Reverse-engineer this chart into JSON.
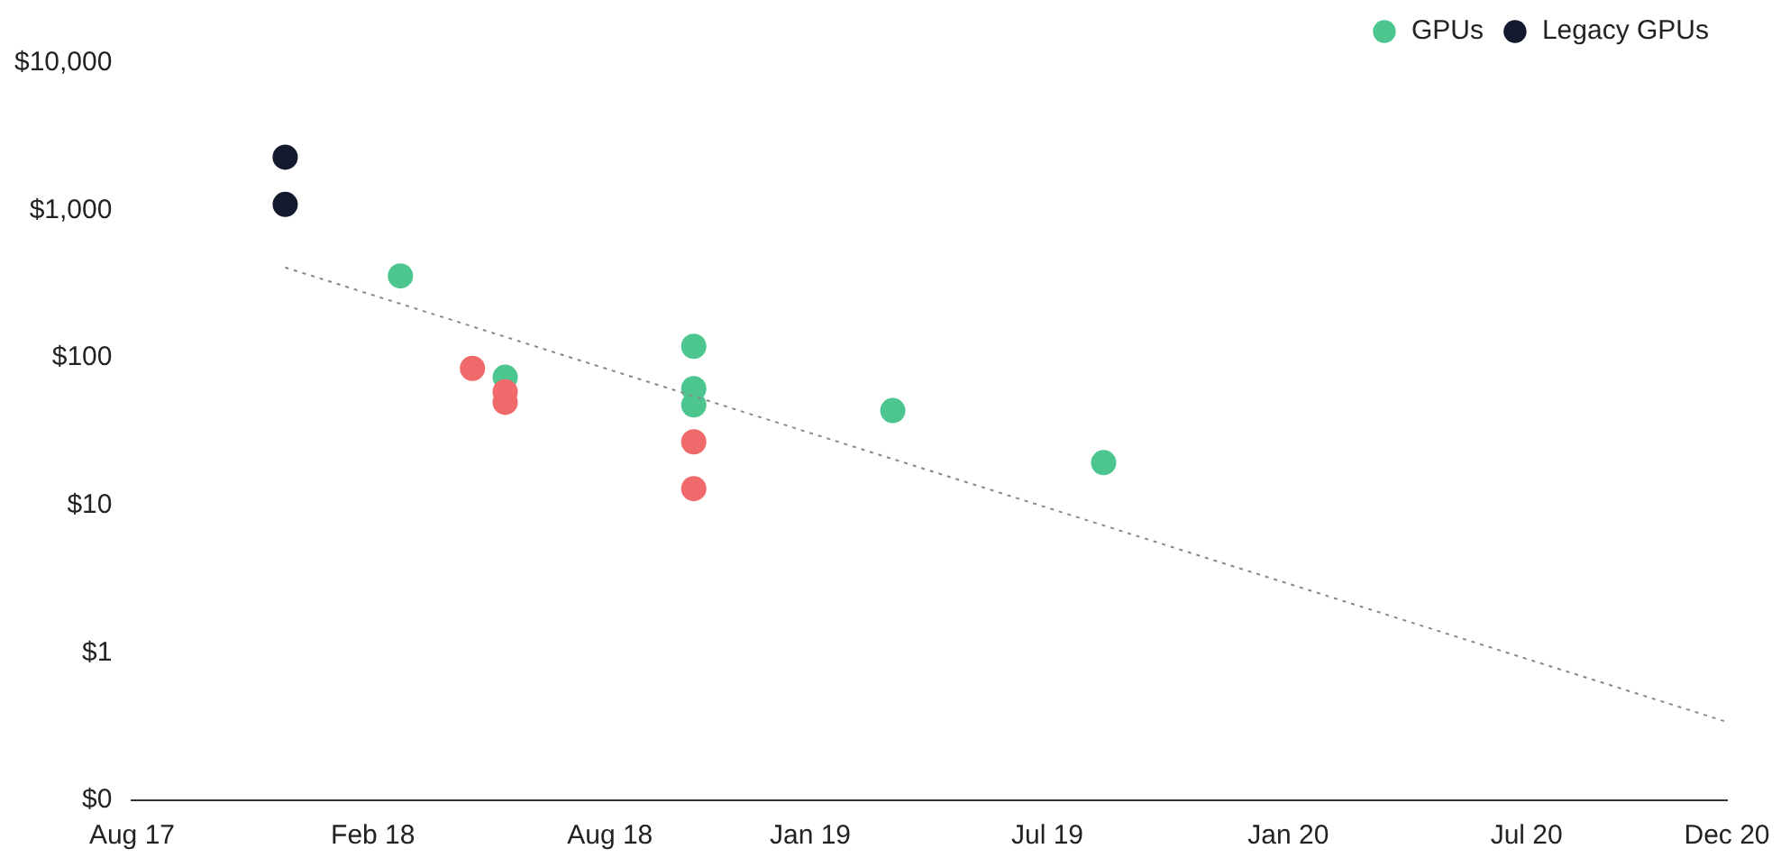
{
  "chart_data": {
    "type": "scatter",
    "xlim": [
      "2017-08",
      "2020-12"
    ],
    "xticks": [
      {
        "value": "2017-08",
        "label": "Aug 17"
      },
      {
        "value": "2018-02",
        "label": "Feb 18"
      },
      {
        "value": "2018-08",
        "label": "Aug 18"
      },
      {
        "value": "2019-01",
        "label": "Jan 19"
      },
      {
        "value": "2019-07",
        "label": "Jul 19"
      },
      {
        "value": "2020-01",
        "label": "Jan 20"
      },
      {
        "value": "2020-07",
        "label": "Jul 20"
      },
      {
        "value": "2020-12",
        "label": "Dec 20"
      }
    ],
    "log": "y",
    "ylim": [
      0.1,
      10000
    ],
    "yticks": [
      {
        "value": 0.1,
        "label": "$0"
      },
      {
        "value": 1,
        "label": "$1"
      },
      {
        "value": 10,
        "label": "$10"
      },
      {
        "value": 100,
        "label": "$100"
      },
      {
        "value": 1000,
        "label": "$1,000"
      },
      {
        "value": 10000,
        "label": "$10,000"
      }
    ],
    "grid": false,
    "legend": "top right",
    "marker": "circle",
    "series": [
      {
        "name": "Legacy GPUs",
        "color": "#141a2e",
        "x": [
          "2017-11-26",
          "2017-11-26"
        ],
        "values": [
          2300,
          1100
        ]
      },
      {
        "name": "GPUs",
        "color": "#4dc58f",
        "x": [
          "2018-02-22",
          "2018-05-13",
          "2018-10-04",
          "2018-10-04",
          "2018-10-04",
          "2019-03-05",
          "2019-08-13"
        ],
        "values": [
          360,
          74,
          120,
          62,
          48,
          44,
          19.5
        ]
      },
      {
        "color": "#f0696b",
        "x": [
          "2018-04-18",
          "2018-05-13",
          "2018-05-13",
          "2018-10-04",
          "2018-10-04"
        ],
        "values": [
          85,
          59,
          50,
          27,
          13
        ]
      },
      {
        "type": "line",
        "line_style": "dotted",
        "marker": "none",
        "color": "#888888",
        "x": [
          "2017-11-26",
          "2020-12-01"
        ],
        "values": [
          411,
          0.34
        ]
      }
    ]
  }
}
